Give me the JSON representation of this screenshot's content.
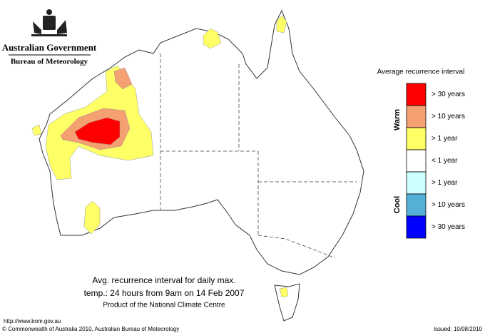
{
  "header": {
    "government": "Australian Government",
    "bureau": "Bureau of Meteorology"
  },
  "legend": {
    "title": "Average recurrence interval",
    "groups": {
      "warm": "Warm",
      "cool": "Cool"
    },
    "items": [
      {
        "label": "> 30 years",
        "color": "#ff0000"
      },
      {
        "label": "> 10 years",
        "color": "#f5a070"
      },
      {
        "label": "> 1 year",
        "color": "#ffff66"
      },
      {
        "label": "< 1 year",
        "color": "#ffffff"
      },
      {
        "label": "> 1 year",
        "color": "#ccffff"
      },
      {
        "label": "> 10 years",
        "color": "#55b0d8"
      },
      {
        "label": "> 30 years",
        "color": "#0000ff"
      }
    ]
  },
  "caption": {
    "line1": "Avg. recurrence interval for daily max.",
    "line2": "temp.: 24 hours from 9am on 14 Feb 2007",
    "line3": "Product of the National Climate Centre"
  },
  "footer": {
    "url": "http://www.bom.gov.au",
    "copyright": "© Commonwealth of Australia 2010, Australian Bureau of Meteorology",
    "issued": "Issued: 10/08/2010"
  }
}
